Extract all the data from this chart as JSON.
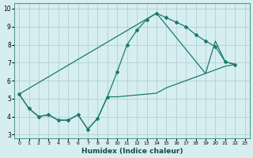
{
  "xlabel": "Humidex (Indice chaleur)",
  "bg_color": "#d6eef0",
  "grid_color": "#b0d0d8",
  "line_color": "#1a7a6e",
  "xlim": [
    -0.5,
    23.5
  ],
  "ylim": [
    2.8,
    10.3
  ],
  "xticks": [
    0,
    1,
    2,
    3,
    4,
    5,
    6,
    7,
    8,
    9,
    10,
    11,
    12,
    13,
    14,
    15,
    16,
    17,
    18,
    19,
    20,
    21,
    22,
    23
  ],
  "yticks": [
    3,
    4,
    5,
    6,
    7,
    8,
    9,
    10
  ],
  "line1_x": [
    0,
    1,
    2,
    3,
    4,
    5,
    6,
    7,
    8,
    9,
    10,
    11,
    12,
    13,
    14,
    15,
    16,
    17,
    18,
    19,
    20,
    21,
    22
  ],
  "line1_y": [
    5.25,
    4.45,
    4.0,
    4.1,
    3.8,
    3.8,
    4.1,
    3.3,
    3.9,
    5.1,
    6.5,
    8.0,
    8.8,
    9.4,
    9.75,
    9.5,
    9.25,
    9.0,
    8.55,
    8.2,
    7.9,
    7.05,
    6.9
  ],
  "line2_x": [
    0,
    1,
    2,
    3,
    4,
    5,
    6,
    7,
    8,
    9,
    10,
    11,
    12,
    13,
    14,
    15,
    16,
    17,
    18,
    19,
    20,
    21,
    22
  ],
  "line2_y": [
    5.25,
    4.45,
    4.0,
    4.1,
    3.8,
    3.8,
    4.1,
    3.3,
    3.9,
    5.1,
    5.1,
    5.15,
    5.2,
    5.25,
    5.3,
    5.6,
    5.8,
    6.0,
    6.2,
    6.4,
    6.6,
    6.8,
    6.9
  ],
  "line3_x": [
    0,
    14,
    19,
    20,
    21,
    22
  ],
  "line3_y": [
    5.25,
    9.75,
    6.4,
    8.2,
    7.05,
    6.9
  ]
}
